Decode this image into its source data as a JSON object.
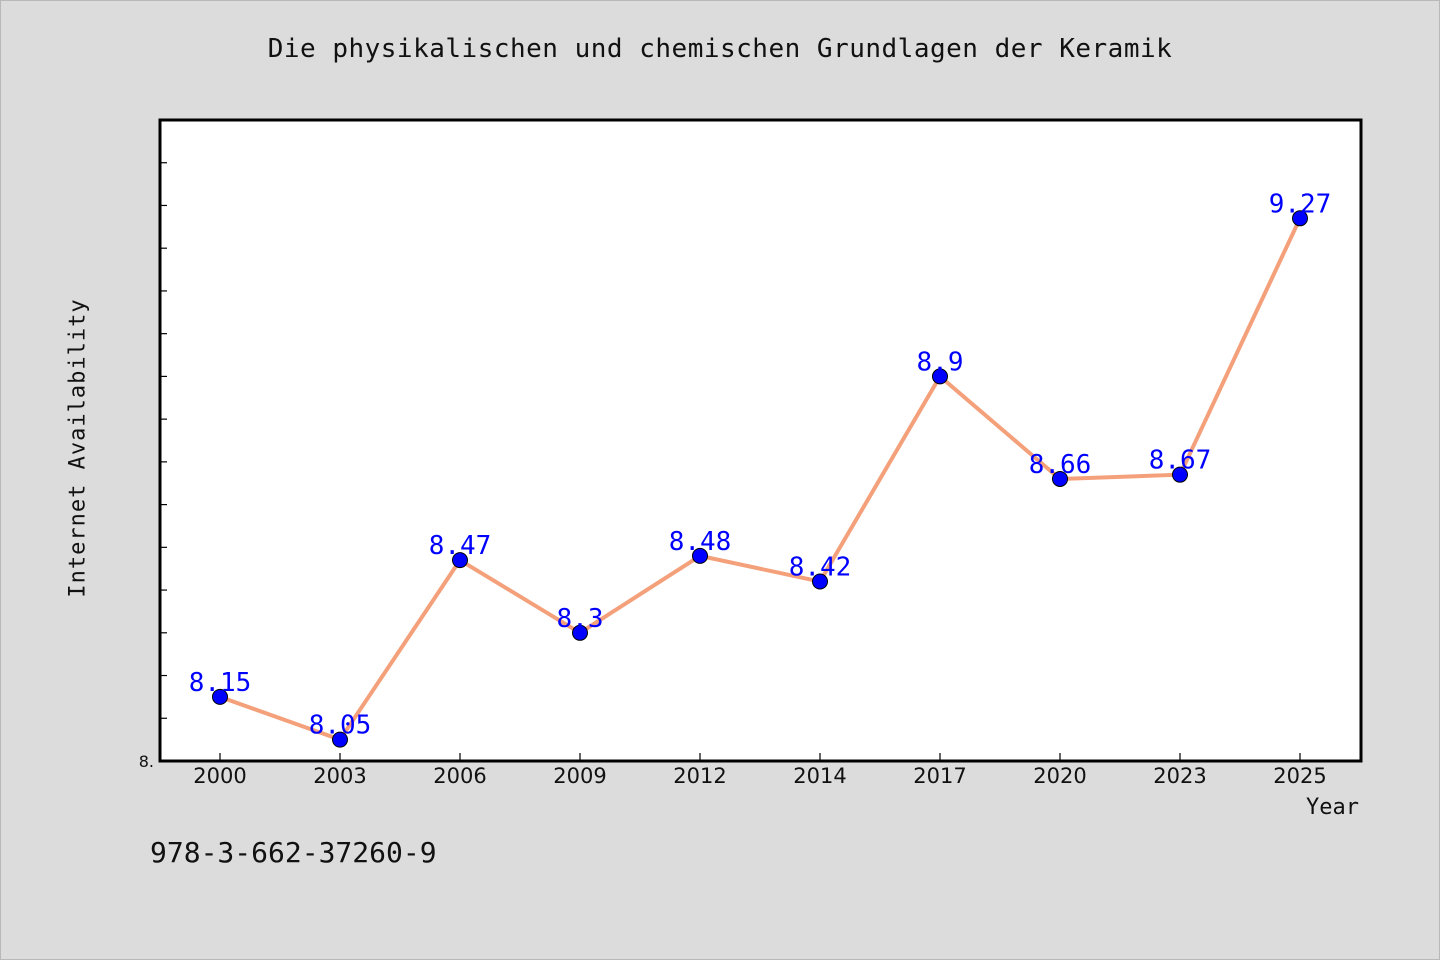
{
  "chart_data": {
    "type": "line",
    "title": "Die physikalischen und chemischen Grundlagen der Keramik",
    "xlabel": "Year",
    "ylabel": "Internet Availability",
    "categories": [
      "2000",
      "2003",
      "2006",
      "2009",
      "2012",
      "2014",
      "2017",
      "2020",
      "2023",
      "2025"
    ],
    "series": [
      {
        "values": [
          8.15,
          8.05,
          8.47,
          8.3,
          8.48,
          8.42,
          8.9,
          8.66,
          8.67,
          9.27
        ],
        "labels": [
          "8.15",
          "8.05",
          "8.47",
          "8.3",
          "8.48",
          "8.42",
          "8.9",
          "8.66",
          "8.67",
          "9.27"
        ]
      }
    ],
    "ylim": [
      8.0,
      9.5
    ],
    "ytick_label": "8.",
    "grid": false,
    "legend": "none",
    "colors": {
      "line": "#f4a07a",
      "marker": "#0000ff",
      "label": "#0000ff",
      "plot_bg": "#ffffff",
      "page_bg": "#dcdcdc"
    }
  },
  "footer": "978-3-662-37260-9"
}
